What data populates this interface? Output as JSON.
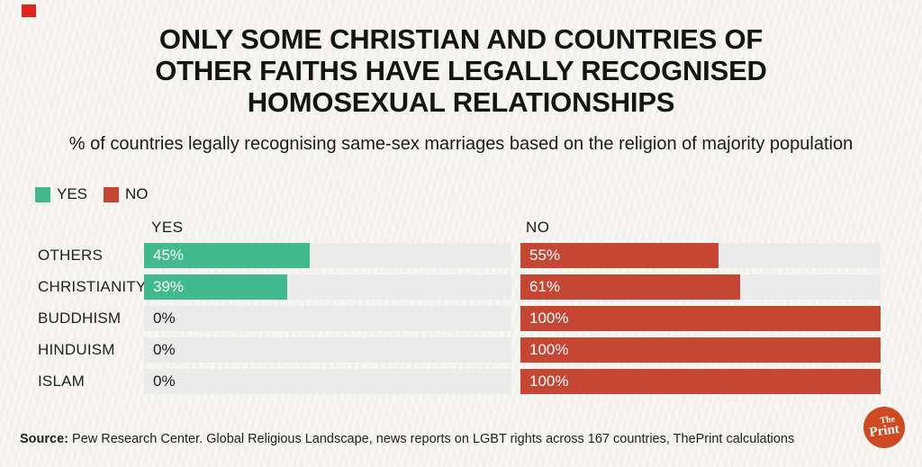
{
  "title": {
    "lines": [
      "ONLY SOME CHRISTIAN AND COUNTRIES OF",
      "OTHER FAITHS HAVE LEGALLY RECOGNISED",
      "HOMOSEXUAL RELATIONSHIPS"
    ]
  },
  "subtitle": "% of countries legally recognising same-sex marriages based on the religion of majority population",
  "legend": [
    {
      "label": "YES",
      "color": "#41bb8d"
    },
    {
      "label": "NO",
      "color": "#c64634"
    }
  ],
  "chart_data": {
    "type": "bar",
    "orientation": "horizontal",
    "categories": [
      "OTHERS",
      "CHRISTIANITY",
      "BUDDHISM",
      "HINDUISM",
      "ISLAM"
    ],
    "series": [
      {
        "name": "YES",
        "color": "#41bb8d",
        "values": [
          45,
          39,
          0,
          0,
          0
        ]
      },
      {
        "name": "NO",
        "color": "#c64634",
        "values": [
          55,
          61,
          100,
          100,
          100
        ]
      }
    ],
    "column_headers": [
      "YES",
      "NO"
    ],
    "value_suffix": "%",
    "xlim": [
      0,
      100
    ],
    "track_color": "#ebebeb",
    "value_label_on_bar_color": "#ffffff",
    "value_label_on_track_color": "#1a1a1a"
  },
  "source": {
    "label": "Source:",
    "text": " Pew Research Center. Global Religious Landscape, news reports on LGBT rights across 167 countries, ThePrint calculations"
  },
  "logo": {
    "line1": "The",
    "line2": "Print",
    "color": "#cf4a20"
  },
  "corner_marker": {
    "color": "#e0251d"
  }
}
